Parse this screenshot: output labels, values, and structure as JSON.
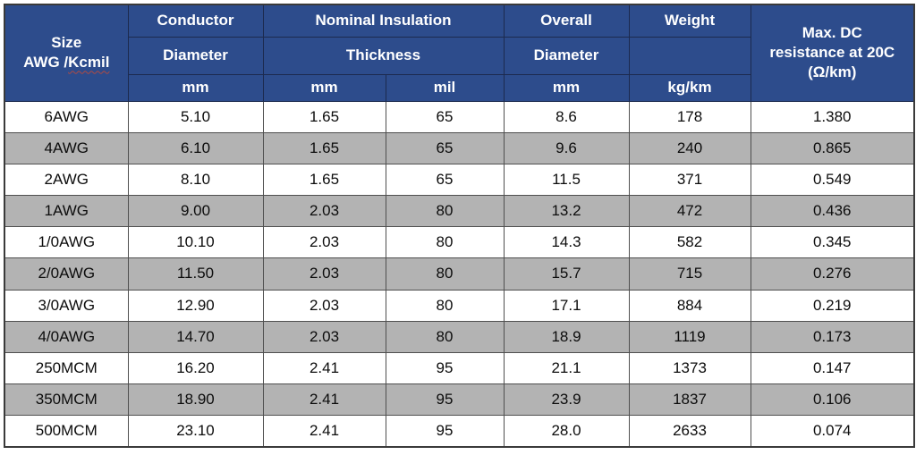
{
  "colors": {
    "header_bg": "#2d4c8c",
    "header_text": "#ffffff",
    "header_border": "#1c2a4e",
    "row_bg": "#ffffff",
    "row_alt_bg": "#b3b3b3",
    "data_text": "#0c0c0c",
    "body_border": "#4f4f4f",
    "squiggle": "#b04a42",
    "outer_border": "#3a3a3a"
  },
  "table": {
    "header": {
      "size_line1": "Size",
      "size_line2_prefix": "AWG /",
      "size_line2_underlined": "Kcmil",
      "conductor_title": "Conductor",
      "conductor_sub": "Diameter",
      "conductor_unit": "mm",
      "insulation_title": "Nominal Insulation",
      "insulation_sub": "Thickness",
      "insulation_unit_mm": "mm",
      "insulation_unit_mil": "mil",
      "overall_title": "Overall",
      "overall_sub": "Diameter",
      "overall_unit": "mm",
      "weight_title": "Weight",
      "weight_sub": "",
      "weight_unit": "kg/km",
      "resistance_line1": "Max. DC",
      "resistance_line2": "resistance at 20C",
      "resistance_line3": "(Ω/km)"
    },
    "rows": [
      [
        "6AWG",
        "5.10",
        "1.65",
        "65",
        "8.6",
        "178",
        "1.380"
      ],
      [
        "4AWG",
        "6.10",
        "1.65",
        "65",
        "9.6",
        "240",
        "0.865"
      ],
      [
        "2AWG",
        "8.10",
        "1.65",
        "65",
        "11.5",
        "371",
        "0.549"
      ],
      [
        "1AWG",
        "9.00",
        "2.03",
        "80",
        "13.2",
        "472",
        "0.436"
      ],
      [
        "1/0AWG",
        "10.10",
        "2.03",
        "80",
        "14.3",
        "582",
        "0.345"
      ],
      [
        "2/0AWG",
        "11.50",
        "2.03",
        "80",
        "15.7",
        "715",
        "0.276"
      ],
      [
        "3/0AWG",
        "12.90",
        "2.03",
        "80",
        "17.1",
        "884",
        "0.219"
      ],
      [
        "4/0AWG",
        "14.70",
        "2.03",
        "80",
        "18.9",
        "1119",
        "0.173"
      ],
      [
        "250MCM",
        "16.20",
        "2.41",
        "95",
        "21.1",
        "1373",
        "0.147"
      ],
      [
        "350MCM",
        "18.90",
        "2.41",
        "95",
        "23.9",
        "1837",
        "0.106"
      ],
      [
        "500MCM",
        "23.10",
        "2.41",
        "95",
        "28.0",
        "2633",
        "0.074"
      ]
    ]
  }
}
